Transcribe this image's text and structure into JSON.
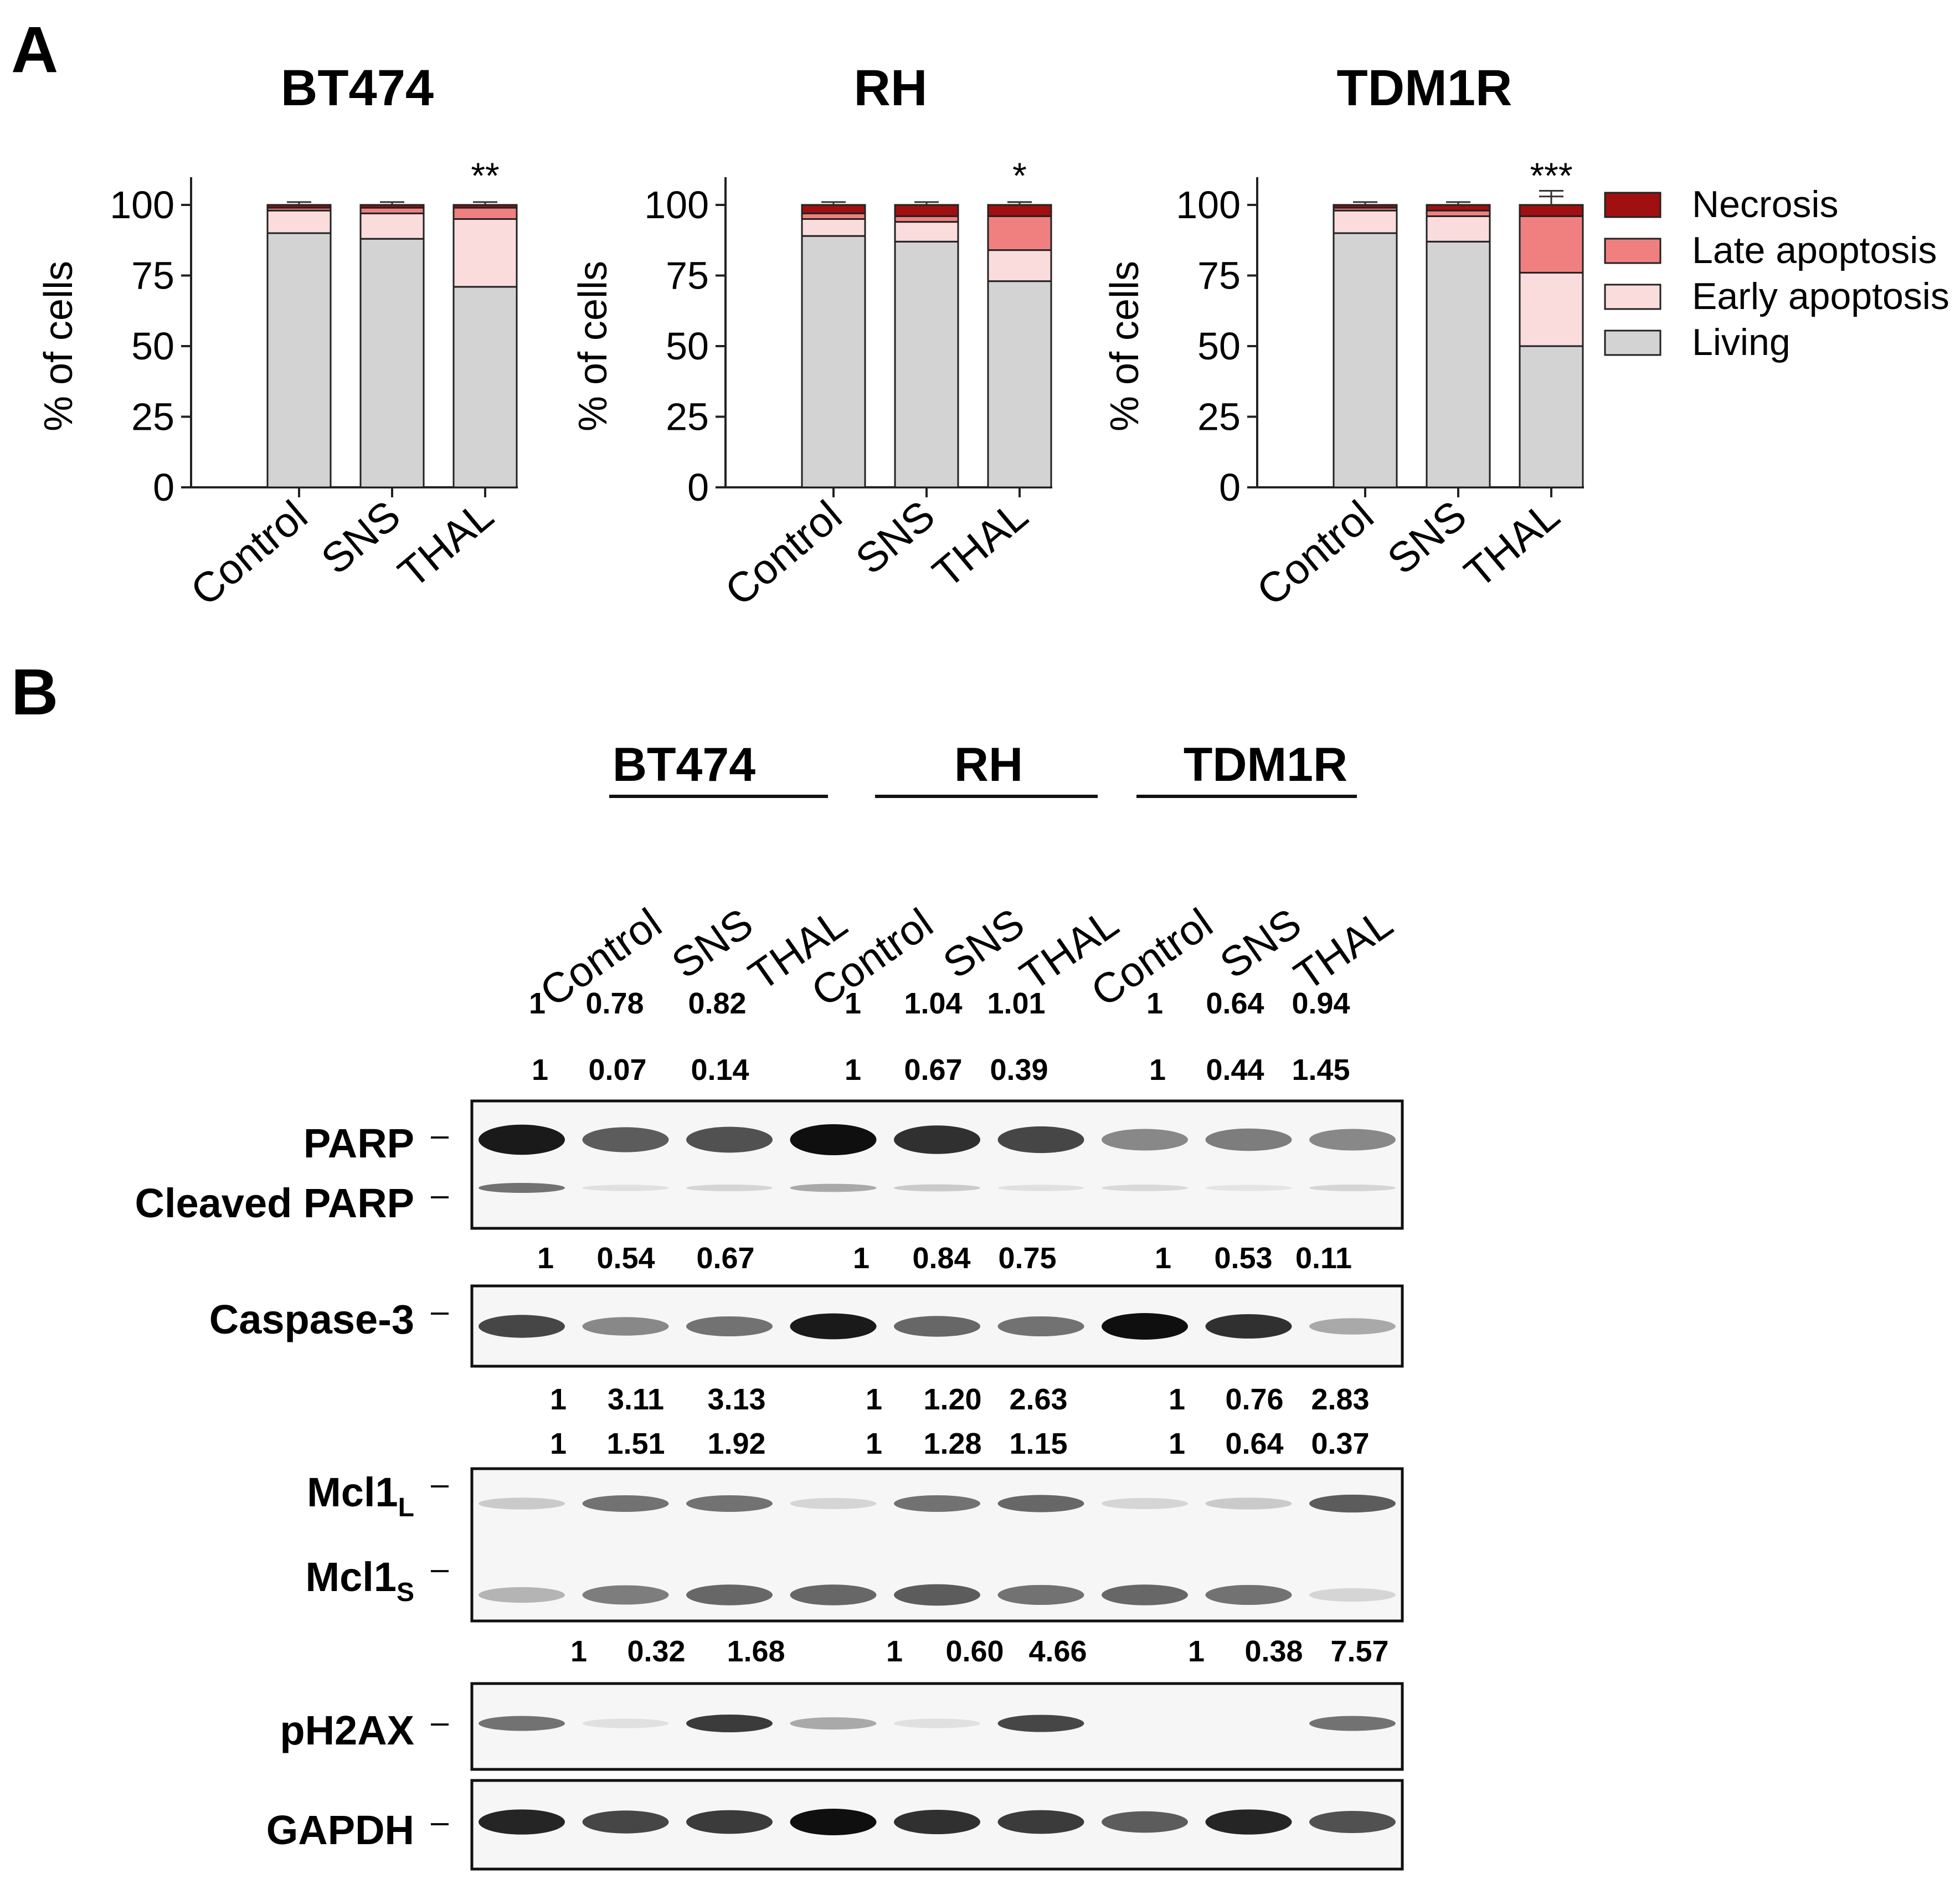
{
  "panel_a": {
    "label": "A"
  },
  "panel_b": {
    "label": "B"
  },
  "chart_data": [
    {
      "type": "bar",
      "stacked": true,
      "title": "BT474",
      "ylabel": "% of cells",
      "ylim": [
        0,
        100
      ],
      "yticks": [
        "0",
        "25",
        "50",
        "75",
        "100"
      ],
      "categories": [
        "Control",
        "SNS",
        "THAL"
      ],
      "significance": [
        "",
        "",
        "**"
      ],
      "series": [
        {
          "name": "Living",
          "values": [
            90,
            88,
            71
          ],
          "errors": [
            4,
            4,
            5
          ]
        },
        {
          "name": "Early apoptosis",
          "values": [
            8,
            9,
            24
          ],
          "errors": [
            1,
            1,
            2
          ]
        },
        {
          "name": "Late apoptosis",
          "values": [
            1,
            2,
            4
          ],
          "errors": [
            1,
            1,
            1
          ]
        },
        {
          "name": "Necrosis",
          "values": [
            1,
            1,
            1
          ],
          "errors": [
            1,
            1,
            1
          ]
        }
      ]
    },
    {
      "type": "bar",
      "stacked": true,
      "title": "RH",
      "ylabel": "% of cells",
      "ylim": [
        0,
        100
      ],
      "yticks": [
        "0",
        "25",
        "50",
        "75",
        "100"
      ],
      "categories": [
        "Control",
        "SNS",
        "THAL"
      ],
      "significance": [
        "",
        "",
        "*"
      ],
      "series": [
        {
          "name": "Living",
          "values": [
            89,
            87,
            73
          ],
          "errors": [
            5,
            4,
            6
          ]
        },
        {
          "name": "Early apoptosis",
          "values": [
            6,
            7,
            11
          ],
          "errors": [
            1,
            1,
            1
          ]
        },
        {
          "name": "Late apoptosis",
          "values": [
            2,
            2,
            12
          ],
          "errors": [
            1,
            1,
            5
          ]
        },
        {
          "name": "Necrosis",
          "values": [
            3,
            4,
            4
          ],
          "errors": [
            1,
            1,
            1
          ]
        }
      ]
    },
    {
      "type": "bar",
      "stacked": true,
      "title": "TDM1R",
      "ylabel": "% of cells",
      "ylim": [
        0,
        100
      ],
      "yticks": [
        "0",
        "25",
        "50",
        "75",
        "100"
      ],
      "categories": [
        "Control",
        "SNS",
        "THAL"
      ],
      "significance": [
        "",
        "",
        "***"
      ],
      "series": [
        {
          "name": "Living",
          "values": [
            90,
            87,
            50
          ],
          "errors": [
            4,
            10,
            4
          ]
        },
        {
          "name": "Early apoptosis",
          "values": [
            8,
            9,
            26
          ],
          "errors": [
            1,
            1,
            1
          ]
        },
        {
          "name": "Late apoptosis",
          "values": [
            1,
            2,
            20
          ],
          "errors": [
            1,
            1,
            9
          ]
        },
        {
          "name": "Necrosis",
          "values": [
            1,
            2,
            4
          ],
          "errors": [
            1,
            1,
            3
          ]
        }
      ]
    }
  ],
  "colors": {
    "Living": "#d3d3d3",
    "Early apoptosis": "#fbdcdc",
    "Late apoptosis": "#f08080",
    "Necrosis": "#a01010"
  },
  "legend": [
    "Necrosis",
    "Late apoptosis",
    "Early apoptosis",
    "Living"
  ],
  "blot": {
    "cell_lines": [
      "BT474",
      "RH",
      "TDM1R"
    ],
    "lanes": [
      "Control",
      "SNS",
      "THAL",
      "Control",
      "SNS",
      "THAL",
      "Control",
      "SNS",
      "THAL"
    ],
    "quant_rows": [
      [
        "1",
        "0.78",
        "0.82",
        "1",
        "1.04",
        "1.01",
        "1",
        "0.64",
        "0.94"
      ],
      [
        "1",
        "0.07",
        "0.14",
        "1",
        "0.67",
        "0.39",
        "1",
        "0.44",
        "1.45"
      ],
      [
        "1",
        "0.54",
        "0.67",
        "1",
        "0.84",
        "0.75",
        "1",
        "0.53",
        "0.11"
      ],
      [
        "1",
        "3.11",
        "3.13",
        "1",
        "1.20",
        "2.63",
        "1",
        "0.76",
        "2.83"
      ],
      [
        "1",
        "1.51",
        "1.92",
        "1",
        "1.28",
        "1.15",
        "1",
        "0.64",
        "0.37"
      ],
      [
        "1",
        "0.32",
        "1.68",
        "1",
        "0.60",
        "4.66",
        "1",
        "0.38",
        "7.57"
      ]
    ],
    "proteins": {
      "parp": "PARP",
      "cleaved_parp": "Cleaved PARP",
      "caspase3": "Caspase-3",
      "mcl1_base": "Mcl1",
      "mcl1_l_sub": "L",
      "mcl1_s_sub": "S",
      "ph2ax": "pH2AX",
      "gapdh": "GAPDH"
    },
    "band_intensity": {
      "parp": [
        0.95,
        0.65,
        0.7,
        1.0,
        0.85,
        0.75,
        0.45,
        0.5,
        0.45
      ],
      "cleaved_parp": [
        0.55,
        0.05,
        0.1,
        0.3,
        0.15,
        0.05,
        0.08,
        0.03,
        0.1
      ],
      "caspase3": [
        0.75,
        0.45,
        0.55,
        0.95,
        0.6,
        0.55,
        1.0,
        0.85,
        0.3
      ],
      "mcl1_l": [
        0.15,
        0.55,
        0.55,
        0.1,
        0.55,
        0.6,
        0.1,
        0.15,
        0.65
      ],
      "mcl1_s": [
        0.25,
        0.5,
        0.6,
        0.6,
        0.65,
        0.55,
        0.6,
        0.55,
        0.1
      ],
      "ph2ax": [
        0.55,
        0.05,
        0.8,
        0.3,
        0.05,
        0.75,
        0.0,
        0.0,
        0.55
      ],
      "gapdh": [
        0.9,
        0.75,
        0.8,
        1.0,
        0.85,
        0.8,
        0.65,
        0.9,
        0.7
      ]
    }
  }
}
